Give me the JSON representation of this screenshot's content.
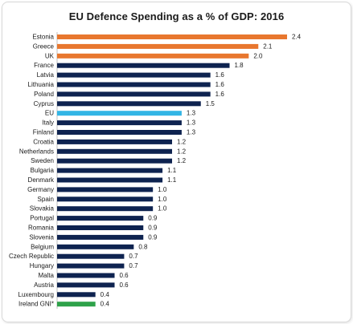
{
  "chart_data": {
    "type": "bar",
    "orientation": "horizontal",
    "title": "EU Defence Spending as a % of GDP:  2016",
    "categories": [
      "Estonia",
      "Greece",
      "UK",
      "France",
      "Latvia",
      "Lithuania",
      "Poland",
      "Cyprus",
      "EU",
      "Italy",
      "Finland",
      "Croatia",
      "Netherlands",
      "Sweden",
      "Bulgaria",
      "Denmark",
      "Germany",
      "Spain",
      "Slovakia",
      "Portugal",
      "Romania",
      "Slovenia",
      "Belgium",
      "Czech Republic",
      "Hungary",
      "Malta",
      "Austria",
      "Luxembourg",
      "Ireland GNI*"
    ],
    "values": [
      2.4,
      2.1,
      2.0,
      1.8,
      1.6,
      1.6,
      1.6,
      1.5,
      1.3,
      1.3,
      1.3,
      1.2,
      1.2,
      1.2,
      1.1,
      1.1,
      1.0,
      1.0,
      1.0,
      0.9,
      0.9,
      0.9,
      0.8,
      0.7,
      0.7,
      0.6,
      0.6,
      0.4,
      0.4
    ],
    "value_labels": [
      "2.4",
      "2.1",
      "2.0",
      "1.8",
      "1.6",
      "1.6",
      "1.6",
      "1.5",
      "1.3",
      "1.3",
      "1.3",
      "1.2",
      "1.2",
      "1.2",
      "1.1",
      "1.1",
      "1.0",
      "1.0",
      "1.0",
      "0.9",
      "0.9",
      "0.9",
      "0.8",
      "0.7",
      "0.7",
      "0.6",
      "0.6",
      "0.4",
      "0.4"
    ],
    "bar_colors": [
      "#e8772e",
      "#e8772e",
      "#e8772e",
      "#0e2350",
      "#0e2350",
      "#0e2350",
      "#0e2350",
      "#0e2350",
      "#33b5e5",
      "#0e2350",
      "#0e2350",
      "#0e2350",
      "#0e2350",
      "#0e2350",
      "#0e2350",
      "#0e2350",
      "#0e2350",
      "#0e2350",
      "#0e2350",
      "#0e2350",
      "#0e2350",
      "#0e2350",
      "#0e2350",
      "#0e2350",
      "#0e2350",
      "#0e2350",
      "#0e2350",
      "#0e2350",
      "#2ea24a"
    ],
    "xlim": [
      0,
      2.4
    ],
    "grid": false,
    "legend": "none"
  }
}
